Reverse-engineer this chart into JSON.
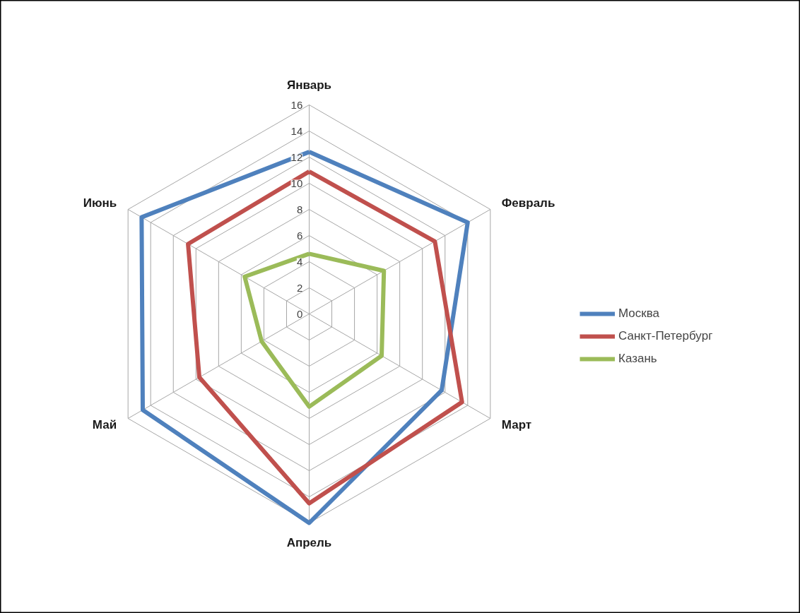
{
  "chart_data": {
    "type": "radar",
    "categories": [
      "Январь",
      "Февраль",
      "Март",
      "Апрель",
      "Май",
      "Июнь"
    ],
    "series": [
      {
        "name": "Москва",
        "color": "#4f81bd",
        "values": [
          12.4,
          14,
          11.7,
          16,
          14.7,
          14.8
        ]
      },
      {
        "name": "Санкт-Петербург",
        "color": "#c0504d",
        "values": [
          10.9,
          11.1,
          13.5,
          14.5,
          9.7,
          10.7
        ]
      },
      {
        "name": "Казань",
        "color": "#9bbb59",
        "values": [
          4.6,
          6.6,
          6.4,
          7.1,
          4.2,
          5.7
        ]
      }
    ],
    "ylim": [
      0,
      16
    ],
    "yticks": [
      0,
      2,
      4,
      6,
      8,
      10,
      12,
      14,
      16
    ],
    "grid": true,
    "legend": "right"
  }
}
